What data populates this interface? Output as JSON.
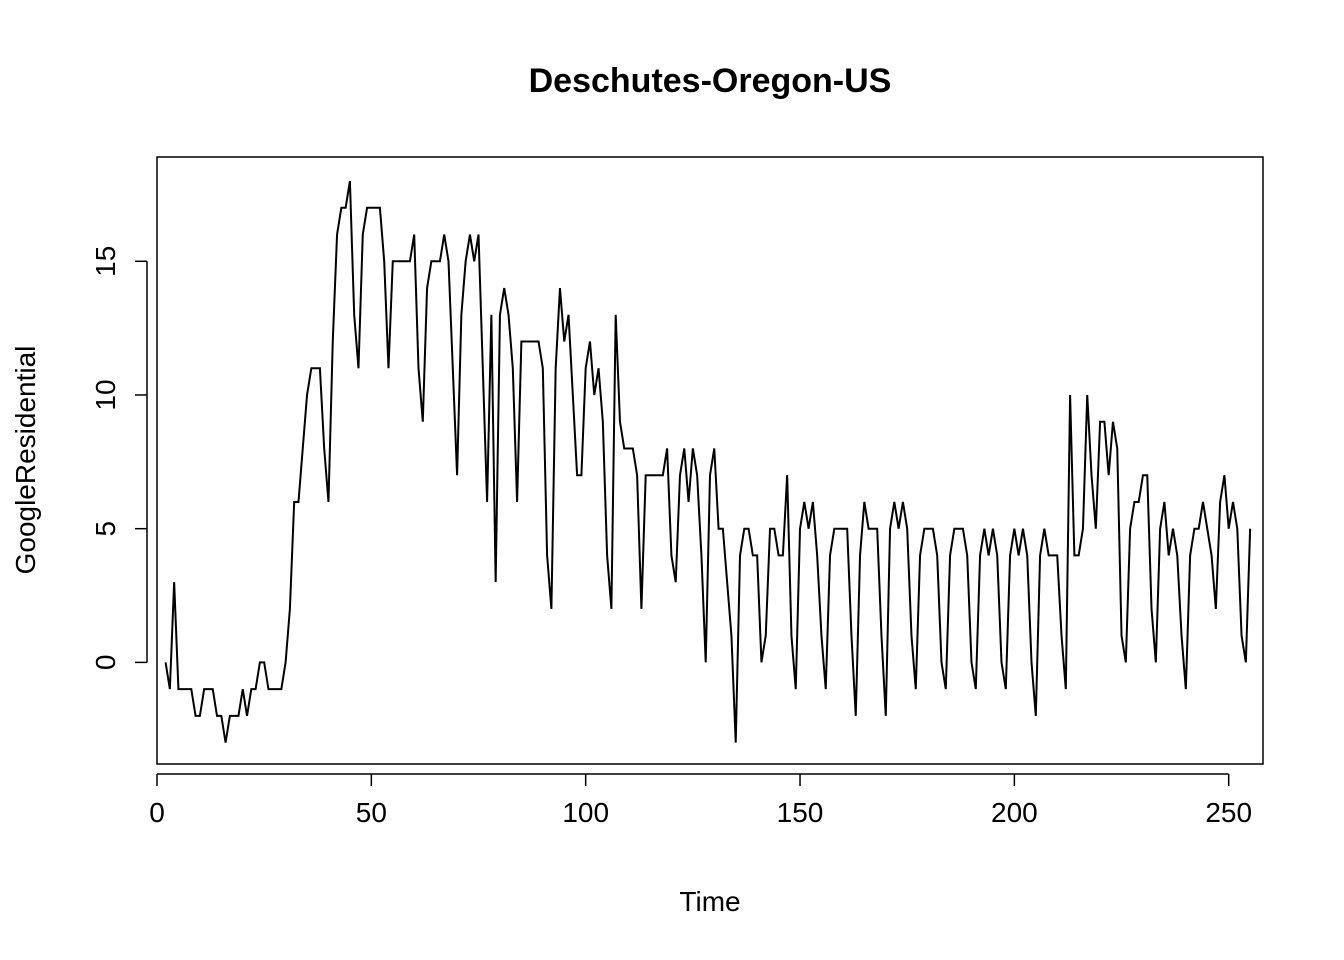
{
  "chart_data": {
    "type": "line",
    "title": "Deschutes-Oregon-US",
    "xlabel": "Time",
    "ylabel": "GoogleResidential",
    "xlim": [
      0,
      258
    ],
    "ylim": [
      -3.8,
      18.9
    ],
    "x_ticks": [
      0,
      50,
      100,
      150,
      200,
      250
    ],
    "y_ticks": [
      0,
      5,
      10,
      15
    ],
    "grid": false,
    "legend": "none",
    "colors": {
      "line": "#000000",
      "axis": "#000000",
      "background": "#ffffff"
    },
    "series": [
      {
        "x_start": 2,
        "values": [
          0,
          -1,
          3,
          -1,
          -1,
          -1,
          -1,
          -2,
          -2,
          -1,
          -1,
          -1,
          -2,
          -2,
          -3,
          -2,
          -2,
          -2,
          -1,
          -2,
          -1,
          -1,
          0,
          0,
          -1,
          -1,
          -1,
          -1,
          0,
          2,
          6,
          6,
          8,
          10,
          11,
          11,
          11,
          8,
          6,
          12,
          16,
          17,
          17,
          18,
          13,
          11,
          16,
          17,
          17,
          17,
          17,
          15,
          11,
          15,
          15,
          15,
          15,
          15,
          16,
          11,
          9,
          14,
          15,
          15,
          15,
          16,
          15,
          11,
          7,
          13,
          15,
          16,
          15,
          16,
          11,
          6,
          13,
          3,
          13,
          14,
          13,
          11,
          6,
          12,
          12,
          12,
          12,
          12,
          11,
          4,
          2,
          11,
          14,
          12,
          13,
          10,
          7,
          7,
          11,
          12,
          10,
          11,
          9,
          4,
          2,
          13,
          9,
          8,
          8,
          8,
          7,
          2,
          7,
          7,
          7,
          7,
          7,
          8,
          4,
          3,
          7,
          8,
          6,
          8,
          7,
          4,
          0,
          7,
          8,
          5,
          5,
          3,
          1,
          -3,
          4,
          5,
          5,
          4,
          4,
          0,
          1,
          5,
          5,
          4,
          4,
          7,
          1,
          -1,
          5,
          6,
          5,
          6,
          4,
          1,
          -1,
          4,
          5,
          5,
          5,
          5,
          1,
          -2,
          4,
          6,
          5,
          5,
          5,
          1,
          -2,
          5,
          6,
          5,
          6,
          5,
          1,
          -1,
          4,
          5,
          5,
          5,
          4,
          0,
          -1,
          4,
          5,
          5,
          5,
          4,
          0,
          -1,
          4,
          5,
          4,
          5,
          4,
          0,
          -1,
          4,
          5,
          4,
          5,
          4,
          0,
          -2,
          4,
          5,
          4,
          4,
          4,
          1,
          -1,
          10,
          4,
          4,
          5,
          10,
          7,
          5,
          9,
          9,
          7,
          9,
          8,
          1,
          0,
          5,
          6,
          6,
          7,
          7,
          2,
          0,
          5,
          6,
          4,
          5,
          4,
          1,
          -1,
          4,
          5,
          5,
          6,
          5,
          4,
          2,
          6,
          7,
          5,
          6,
          5,
          1,
          0,
          5
        ]
      }
    ]
  }
}
